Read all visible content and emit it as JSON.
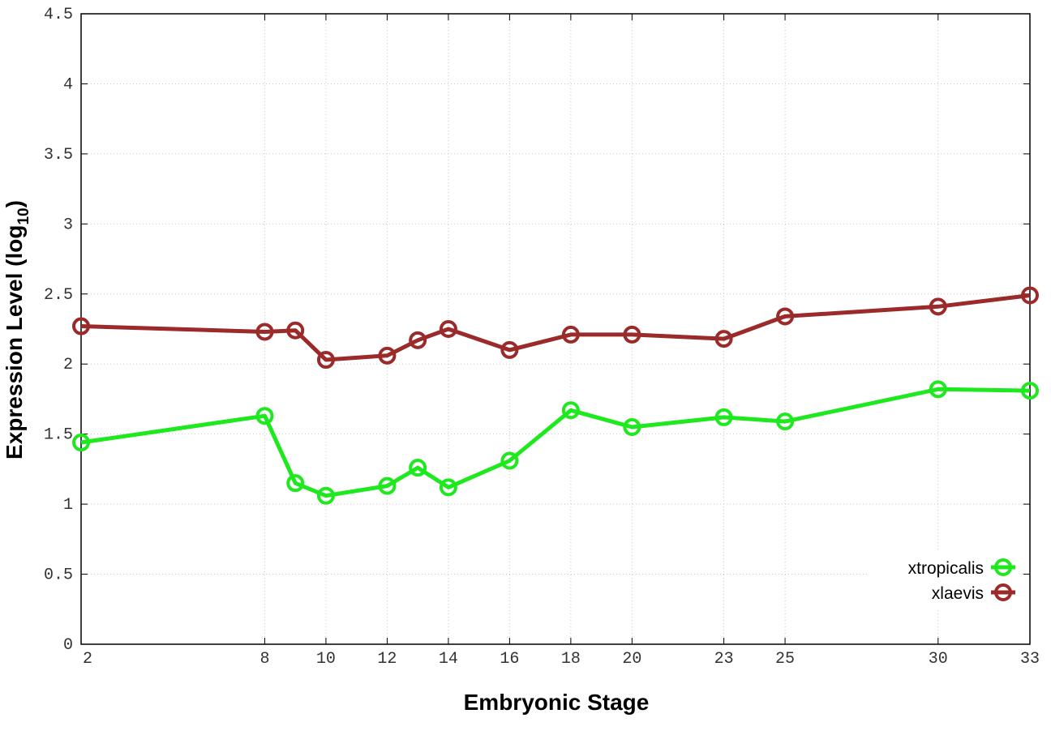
{
  "chart_data": {
    "type": "line",
    "title": "",
    "xlabel": "Embryonic Stage",
    "ylabel": {
      "prefix": "Expression Level (log",
      "sub": "10",
      "suffix": ")"
    },
    "x": [
      2,
      8,
      9,
      10,
      12,
      13,
      14,
      16,
      18,
      20,
      23,
      25,
      30,
      33
    ],
    "x_tick_labels": [
      "2",
      "8",
      "10",
      "12",
      "14",
      "16",
      "18",
      "20",
      "23",
      "25",
      "30",
      "33"
    ],
    "x_tick_values": [
      2,
      8,
      10,
      12,
      14,
      16,
      18,
      20,
      23,
      25,
      30,
      33
    ],
    "xlim": [
      2,
      33
    ],
    "ylim": [
      0,
      4.5
    ],
    "y_ticks": [
      0,
      0.5,
      1,
      1.5,
      2,
      2.5,
      3,
      3.5,
      4,
      4.5
    ],
    "y_tick_labels": [
      "0",
      "0.5",
      "1",
      "1.5",
      "2",
      "2.5",
      "3",
      "3.5",
      "4",
      "4.5"
    ],
    "grid": true,
    "legend_position": "bottom-right",
    "series": [
      {
        "name": "xtropicalis",
        "color": "#1ee81e",
        "values": [
          1.44,
          1.63,
          1.15,
          1.06,
          1.13,
          1.26,
          1.12,
          1.31,
          1.67,
          1.55,
          1.62,
          1.59,
          1.82,
          1.81
        ]
      },
      {
        "name": "xlaevis",
        "color": "#9b2a2a",
        "values": [
          2.27,
          2.23,
          2.24,
          2.03,
          2.06,
          2.17,
          2.25,
          2.1,
          2.21,
          2.21,
          2.18,
          2.34,
          2.41,
          2.49
        ]
      }
    ]
  }
}
